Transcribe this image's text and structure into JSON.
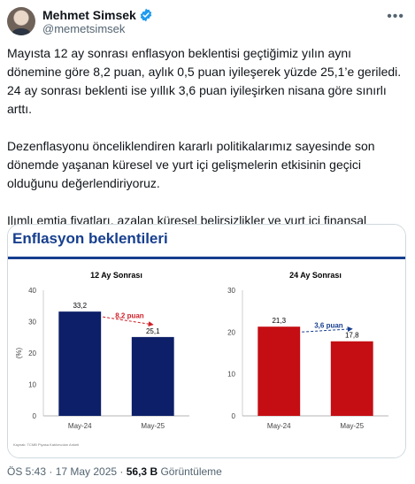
{
  "tweet": {
    "author_name": "Mehmet Simsek",
    "handle": "@memetsimsek",
    "paragraphs": [
      "Mayısta 12 ay sonrası enflasyon beklentisi geçtiğimiz yılın aynı dönemine göre 8,2 puan, aylık 0,5 puan iyileşerek yüzde 25,1’e geriledi. 24 ay sonrası beklenti ise yıllık 3,6 puan iyileşirken nisana göre sınırlı arttı.",
      "Dezenflasyonu önceliklendiren kararlı politikalarımız sayesinde son dönemde yaşanan küresel ve yurt içi gelişmelerin etkisinin geçici olduğunu değerlendiriyoruz.",
      "Ilımlı emtia fiyatları, azalan küresel belirsizlikler ve yurt içi finansal koşullar enflasyonla mücadelemizi destekliyor."
    ],
    "timestamp": "ÖS 5:43 · 17 May 2025 ·",
    "views": "56,3 B",
    "views_label": "Görüntüleme"
  },
  "infographic": {
    "title": "Enflasyon beklentileri",
    "source": "Kaynak: TCMB Piyasa Katılımcıları Anketi"
  },
  "chart_data": [
    {
      "type": "bar",
      "title": "12 Ay Sonrası",
      "categories": [
        "May-24",
        "May-25"
      ],
      "values": [
        33.2,
        25.1
      ],
      "data_labels": [
        "33,2",
        "25,1"
      ],
      "ylabel": "(%)",
      "ylim": [
        0,
        40
      ],
      "yticks": [
        0,
        10,
        20,
        30,
        40
      ],
      "color": "#0d1f68",
      "annotation": "8,2 puan",
      "annotation_color": "#d01f28"
    },
    {
      "type": "bar",
      "title": "24 Ay Sonrası",
      "categories": [
        "May-24",
        "May-25"
      ],
      "values": [
        21.3,
        17.8
      ],
      "data_labels": [
        "21,3",
        "17,8"
      ],
      "ylim": [
        0,
        30
      ],
      "yticks": [
        0,
        10,
        20,
        30
      ],
      "color": "#c40e13",
      "annotation": "3,6 puan",
      "annotation_color": "#173f8f"
    }
  ]
}
